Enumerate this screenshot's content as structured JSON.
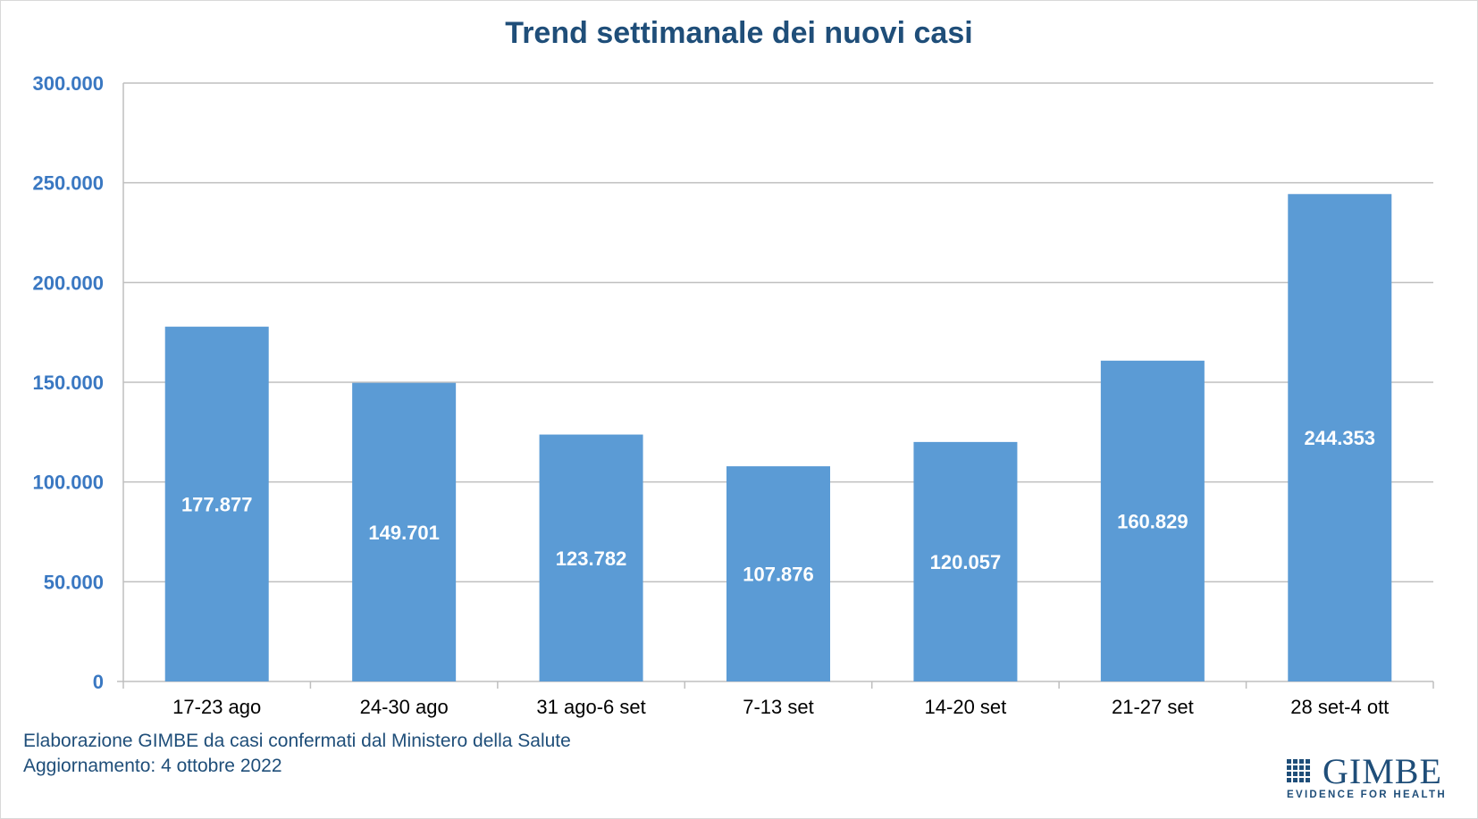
{
  "chart_data": {
    "type": "bar",
    "title": "Trend settimanale dei nuovi casi",
    "categories": [
      "17-23 ago",
      "24-30 ago",
      "31 ago-6 set",
      "7-13 set",
      "14-20 set",
      "21-27 set",
      "28 set-4 ott"
    ],
    "values": [
      177877,
      149701,
      123782,
      107876,
      120057,
      160829,
      244353
    ],
    "data_labels": [
      "177.877",
      "149.701",
      "123.782",
      "107.876",
      "120.057",
      "160.829",
      "244.353"
    ],
    "ylim": [
      0,
      300000
    ],
    "yticks": [
      0,
      50000,
      100000,
      150000,
      200000,
      250000,
      300000
    ],
    "ytick_labels": [
      "0",
      "50.000",
      "100.000",
      "150.000",
      "200.000",
      "250.000",
      "300.000"
    ],
    "grid": true,
    "bar_color": "#5b9bd5",
    "xlabel": "",
    "ylabel": ""
  },
  "footer": {
    "line1": "Elaborazione GIMBE da casi confermati dal Ministero della Salute",
    "line2": "Aggiornamento: 4 ottobre 2022"
  },
  "logo": {
    "name": "GIMBE",
    "tagline": "EVIDENCE FOR HEALTH"
  },
  "colors": {
    "title": "#1f4e79",
    "axis_labels": "#3a78c2",
    "bars": "#5b9bd5",
    "grid": "#bfbfbf"
  }
}
